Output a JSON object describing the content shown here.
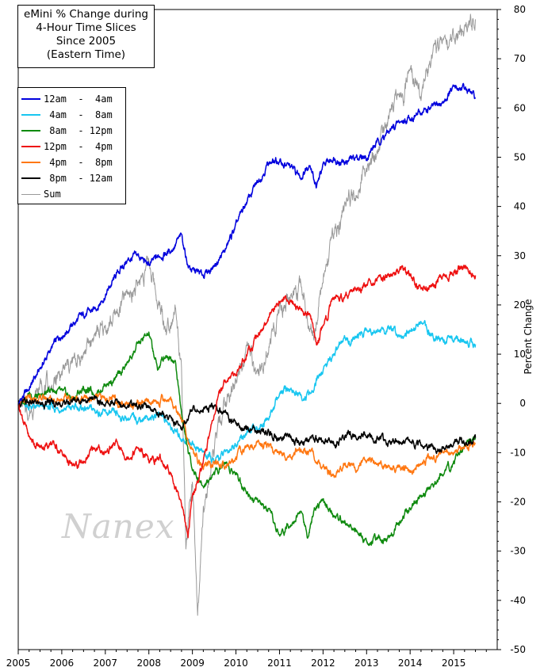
{
  "chart_data": {
    "type": "line",
    "title_lines": [
      "eMini % Change during",
      "4-Hour Time Slices",
      "Since 2005",
      "(Eastern Time)"
    ],
    "watermark": "Nanex",
    "ylabel": "Percent Change",
    "xlabel": "",
    "xlim": [
      2005,
      2016
    ],
    "ylim": [
      -50,
      80
    ],
    "xticks": [
      "2005",
      "2006",
      "2007",
      "2008",
      "2009",
      "2010",
      "2011",
      "2012",
      "2013",
      "2014",
      "2015"
    ],
    "yticks": [
      "80",
      "70",
      "60",
      "50",
      "40",
      "30",
      "20",
      "10",
      "0",
      "-10",
      "-20",
      "-30",
      "-40",
      "-50"
    ],
    "legend_position": "top-left",
    "series": [
      {
        "name": "12am  -  4am",
        "color": "#0000dd",
        "x": [
          2005.0,
          2005.25,
          2005.5,
          2005.75,
          2006.0,
          2006.25,
          2006.5,
          2006.75,
          2007.0,
          2007.25,
          2007.5,
          2007.75,
          2008.0,
          2008.25,
          2008.5,
          2008.75,
          2008.9,
          2009.0,
          2009.25,
          2009.5,
          2009.75,
          2010.0,
          2010.25,
          2010.5,
          2010.75,
          2011.0,
          2011.25,
          2011.5,
          2011.7,
          2011.85,
          2012.0,
          2012.25,
          2012.5,
          2012.75,
          2013.0,
          2013.25,
          2013.5,
          2013.75,
          2014.0,
          2014.25,
          2014.5,
          2014.75,
          2015.0,
          2015.25,
          2015.5
        ],
        "y": [
          0,
          3,
          7,
          11,
          14,
          16,
          18,
          19,
          22,
          26,
          29,
          30,
          28,
          30,
          31,
          34,
          28,
          27,
          26,
          28,
          31,
          36,
          41,
          45,
          49,
          49,
          48,
          46,
          49,
          44,
          48,
          50,
          49,
          50,
          50,
          53,
          55,
          57,
          58,
          59,
          60,
          61,
          64,
          64,
          62
        ]
      },
      {
        "name": " 4am  -  8am",
        "color": "#18c6f0",
        "x": [
          2005.0,
          2005.5,
          2006.0,
          2006.5,
          2007.0,
          2007.5,
          2008.0,
          2008.3,
          2008.5,
          2008.75,
          2009.0,
          2009.25,
          2009.5,
          2009.75,
          2010.0,
          2010.25,
          2010.5,
          2010.75,
          2011.0,
          2011.25,
          2011.5,
          2011.75,
          2012.0,
          2012.25,
          2012.5,
          2012.75,
          2013.0,
          2013.25,
          2013.5,
          2013.75,
          2014.0,
          2014.25,
          2014.5,
          2014.75,
          2015.0,
          2015.25,
          2015.5
        ],
        "y": [
          0,
          -1,
          -1,
          -1,
          -2,
          -3,
          -3,
          -2,
          -5,
          -7,
          -8,
          -10,
          -12,
          -10,
          -8,
          -6,
          -5,
          -3,
          2,
          3,
          1,
          2,
          7,
          10,
          13,
          13,
          15,
          15,
          15,
          14,
          15,
          16,
          14,
          13,
          13,
          13,
          12
        ]
      },
      {
        "name": " 8am  - 12pm",
        "color": "#0f8a0f",
        "x": [
          2005.0,
          2005.25,
          2005.5,
          2005.75,
          2006.0,
          2006.25,
          2006.5,
          2006.75,
          2007.0,
          2007.25,
          2007.5,
          2007.75,
          2008.0,
          2008.2,
          2008.4,
          2008.6,
          2008.75,
          2008.9,
          2009.0,
          2009.25,
          2009.5,
          2009.75,
          2010.0,
          2010.25,
          2010.5,
          2010.75,
          2011.0,
          2011.25,
          2011.5,
          2011.65,
          2011.8,
          2012.0,
          2012.25,
          2012.5,
          2012.75,
          2013.0,
          2013.25,
          2013.5,
          2013.75,
          2014.0,
          2014.25,
          2014.5,
          2014.75,
          2015.0,
          2015.25,
          2015.5
        ],
        "y": [
          0,
          2,
          1,
          3,
          2,
          1,
          3,
          2,
          4,
          5,
          8,
          12,
          14,
          7,
          10,
          9,
          -2,
          -10,
          -13,
          -17,
          -14,
          -12,
          -14,
          -18,
          -20,
          -22,
          -27,
          -24,
          -22,
          -27,
          -21,
          -20,
          -23,
          -24,
          -26,
          -28,
          -28,
          -27,
          -24,
          -21,
          -19,
          -17,
          -14,
          -12,
          -9,
          -7
        ]
      },
      {
        "name": "12pm  -  4pm",
        "color": "#ee1111",
        "x": [
          2005.0,
          2005.25,
          2005.5,
          2005.75,
          2006.0,
          2006.25,
          2006.5,
          2006.75,
          2007.0,
          2007.25,
          2007.5,
          2007.75,
          2008.0,
          2008.25,
          2008.5,
          2008.75,
          2008.9,
          2009.0,
          2009.25,
          2009.5,
          2009.75,
          2010.0,
          2010.25,
          2010.5,
          2010.75,
          2011.0,
          2011.25,
          2011.5,
          2011.7,
          2011.85,
          2012.0,
          2012.25,
          2012.5,
          2012.75,
          2013.0,
          2013.25,
          2013.5,
          2013.75,
          2014.0,
          2014.25,
          2014.5,
          2014.75,
          2015.0,
          2015.25,
          2015.5
        ],
        "y": [
          0,
          -7,
          -9,
          -8,
          -10,
          -13,
          -12,
          -9,
          -10,
          -8,
          -11,
          -9,
          -12,
          -11,
          -14,
          -20,
          -27,
          -19,
          -12,
          -2,
          5,
          6,
          10,
          14,
          17,
          21,
          21,
          19,
          18,
          12,
          16,
          21,
          22,
          23,
          24,
          26,
          26,
          27,
          26,
          23,
          24,
          26,
          27,
          28,
          26
        ]
      },
      {
        "name": " 4pm  -  8pm",
        "color": "#ff7711",
        "x": [
          2005.0,
          2005.5,
          2006.0,
          2006.5,
          2007.0,
          2007.5,
          2008.0,
          2008.5,
          2008.75,
          2009.0,
          2009.25,
          2009.5,
          2009.75,
          2010.0,
          2010.25,
          2010.5,
          2010.75,
          2011.0,
          2011.25,
          2011.5,
          2011.75,
          2012.0,
          2012.25,
          2012.5,
          2012.75,
          2013.0,
          2013.25,
          2013.5,
          2013.75,
          2014.0,
          2014.25,
          2014.5,
          2014.75,
          2015.0,
          2015.25,
          2015.5
        ],
        "y": [
          0,
          1,
          1,
          1,
          1,
          0,
          0,
          1,
          -3,
          -10,
          -13,
          -12,
          -13,
          -11,
          -9,
          -8,
          -9,
          -10,
          -11,
          -10,
          -10,
          -13,
          -15,
          -12,
          -13,
          -12,
          -12,
          -13,
          -13,
          -14,
          -12,
          -11,
          -10,
          -10,
          -9,
          -8
        ]
      },
      {
        "name": " 8pm  - 12am",
        "color": "#000000",
        "x": [
          2005.0,
          2005.5,
          2006.0,
          2006.5,
          2007.0,
          2007.5,
          2008.0,
          2008.5,
          2008.75,
          2009.0,
          2009.25,
          2009.5,
          2009.75,
          2010.0,
          2010.25,
          2010.5,
          2010.75,
          2011.0,
          2011.25,
          2011.5,
          2011.75,
          2012.0,
          2012.25,
          2012.5,
          2012.75,
          2013.0,
          2013.25,
          2013.5,
          2013.75,
          2014.0,
          2014.25,
          2014.5,
          2014.75,
          2015.0,
          2015.25,
          2015.5
        ],
        "y": [
          0,
          0,
          0,
          1,
          0,
          0,
          -1,
          -3,
          -5,
          -1,
          -1,
          -1,
          -2,
          -4,
          -5,
          -6,
          -6,
          -7,
          -7,
          -8,
          -7,
          -8,
          -8,
          -7,
          -6,
          -6,
          -7,
          -8,
          -8,
          -8,
          -9,
          -9,
          -9,
          -8,
          -8,
          -7
        ]
      },
      {
        "name": "Sum",
        "color": "#999999",
        "x": [
          2005.0,
          2005.25,
          2005.5,
          2005.75,
          2006.0,
          2006.25,
          2006.5,
          2006.75,
          2007.0,
          2007.25,
          2007.5,
          2007.75,
          2008.0,
          2008.2,
          2008.4,
          2008.6,
          2008.75,
          2008.85,
          2009.0,
          2009.12,
          2009.25,
          2009.5,
          2009.75,
          2010.0,
          2010.25,
          2010.5,
          2010.75,
          2011.0,
          2011.25,
          2011.5,
          2011.65,
          2011.8,
          2012.0,
          2012.25,
          2012.5,
          2012.75,
          2013.0,
          2013.25,
          2013.5,
          2013.75,
          2014.0,
          2014.25,
          2014.5,
          2014.75,
          2015.0,
          2015.25,
          2015.5
        ],
        "y": [
          0,
          -2,
          4,
          3,
          6,
          8,
          10,
          14,
          15,
          18,
          22,
          24,
          29,
          21,
          15,
          20,
          6,
          -30,
          -17,
          -44,
          -22,
          -10,
          0,
          4,
          13,
          5,
          11,
          19,
          22,
          24,
          17,
          14,
          26,
          34,
          40,
          43,
          48,
          51,
          57,
          62,
          66,
          64,
          70,
          73,
          75,
          76,
          78
        ]
      }
    ]
  }
}
